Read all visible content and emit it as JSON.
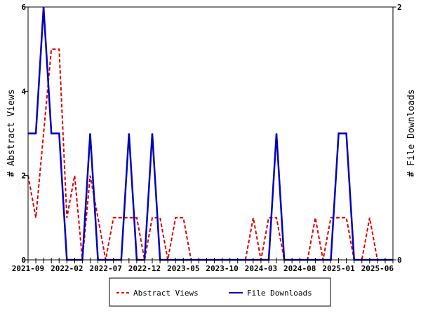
{
  "chart_data": {
    "type": "line",
    "title": "",
    "xlabel": "",
    "ylabel": "# Abstract Views",
    "y2label": "# File Downloads",
    "x": [
      "2021-09",
      "2021-10",
      "2021-11",
      "2021-12",
      "2022-01",
      "2022-02",
      "2022-03",
      "2022-04",
      "2022-05",
      "2022-06",
      "2022-07",
      "2022-08",
      "2022-09",
      "2022-10",
      "2022-11",
      "2022-12",
      "2023-01",
      "2023-02",
      "2023-03",
      "2023-04",
      "2023-05",
      "2023-06",
      "2023-07",
      "2023-08",
      "2023-09",
      "2023-10",
      "2023-11",
      "2023-12",
      "2024-01",
      "2024-02",
      "2024-03",
      "2024-04",
      "2024-05",
      "2024-06",
      "2024-07",
      "2024-08",
      "2024-09",
      "2024-10",
      "2024-11",
      "2024-12",
      "2025-01",
      "2025-02",
      "2025-03",
      "2025-04",
      "2025-05",
      "2025-06",
      "2025-07",
      "2025-08"
    ],
    "x_tick_labels": [
      "2021-09",
      "2022-02",
      "2022-07",
      "2022-12",
      "2023-05",
      "2023-10",
      "2024-03",
      "2024-08",
      "2025-01",
      "2025-06"
    ],
    "x_tick_every": 5,
    "ylim": [
      0,
      6
    ],
    "y_ticks": [
      "0",
      "2",
      "4",
      "6"
    ],
    "y2lim": [
      0,
      2
    ],
    "y2_ticks": [
      "0",
      "2"
    ],
    "series": [
      {
        "name": "Abstract Views",
        "axis": "left",
        "color": "#dd0000",
        "dash": true,
        "values": [
          2,
          1,
          3,
          5,
          5,
          1,
          2,
          0,
          2,
          1,
          0,
          1,
          1,
          1,
          1,
          0,
          1,
          1,
          0,
          1,
          1,
          0,
          0,
          0,
          0,
          0,
          0,
          0,
          0,
          1,
          0,
          1,
          1,
          0,
          0,
          0,
          0,
          1,
          0,
          1,
          1,
          1,
          0,
          0,
          1,
          0,
          0,
          0
        ]
      },
      {
        "name": "File Downloads",
        "axis": "right",
        "color": "#0000bb",
        "dash": false,
        "values": [
          1,
          1,
          2,
          1,
          1,
          0,
          0,
          0,
          1,
          0,
          0,
          0,
          0,
          1,
          0,
          0,
          1,
          0,
          0,
          0,
          0,
          0,
          0,
          0,
          0,
          0,
          0,
          0,
          0,
          0,
          0,
          0,
          1,
          0,
          0,
          0,
          0,
          0,
          0,
          0,
          1,
          1,
          0,
          0,
          0,
          0,
          0,
          0
        ]
      }
    ],
    "legend": "bottom"
  }
}
